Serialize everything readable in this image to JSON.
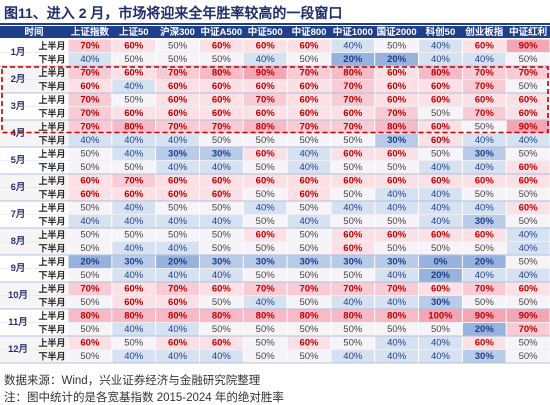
{
  "title": "图11、进入 2 月，市场将迎来全年胜率较高的一段窗口",
  "footer": {
    "source": "数据来源：Wind，兴业证券经济与金融研究院整理",
    "note": "注：图中统计的是各宽基指数 2015-2024 年的绝对胜率"
  },
  "colors": {
    "header_bg": "#1f3f8a",
    "header_text": "#ffffff",
    "label_text": "#1f2d6b",
    "band_light": "#f7f4f6",
    "high": "#c00000",
    "low": "#1f3f8a",
    "neutral": "#444444",
    "highlight_border": "#c00000"
  },
  "chart_data": {
    "type": "table",
    "title": "图11、进入 2 月，市场将迎来全年胜率较高的一段窗口",
    "column_headers": [
      "时间",
      "上证指数",
      "上证50",
      "沪深300",
      "中证A500",
      "中证500",
      "中证800",
      "中证1000",
      "国证2000",
      "科创50",
      "创业板指",
      "中证红利"
    ],
    "months": [
      "1月",
      "2月",
      "3月",
      "4月",
      "5月",
      "6月",
      "7月",
      "8月",
      "9月",
      "10月",
      "11月",
      "12月"
    ],
    "halves": [
      "上半月",
      "下半月"
    ],
    "highlighted_months": [
      "2月",
      "3月",
      "4月"
    ],
    "rows": [
      {
        "month": "1月",
        "half": "上半月",
        "values": [
          "70%",
          "60%",
          "50%",
          "60%",
          "60%",
          "60%",
          "40%",
          "50%",
          "40%",
          "60%",
          "90%"
        ]
      },
      {
        "month": "1月",
        "half": "下半月",
        "values": [
          "40%",
          "50%",
          "50%",
          "50%",
          "40%",
          "50%",
          "20%",
          "20%",
          "40%",
          "40%",
          "50%"
        ]
      },
      {
        "month": "2月",
        "half": "上半月",
        "values": [
          "70%",
          "60%",
          "70%",
          "80%",
          "90%",
          "70%",
          "80%",
          "60%",
          "80%",
          "70%",
          "70%"
        ]
      },
      {
        "month": "2月",
        "half": "下半月",
        "values": [
          "60%",
          "40%",
          "60%",
          "60%",
          "60%",
          "60%",
          "70%",
          "60%",
          "60%",
          "70%",
          "50%"
        ]
      },
      {
        "month": "3月",
        "half": "上半月",
        "values": [
          "70%",
          "50%",
          "60%",
          "60%",
          "70%",
          "60%",
          "70%",
          "60%",
          "60%",
          "60%",
          "60%"
        ]
      },
      {
        "month": "3月",
        "half": "下半月",
        "values": [
          "70%",
          "60%",
          "60%",
          "60%",
          "60%",
          "60%",
          "60%",
          "70%",
          "50%",
          "70%",
          "60%"
        ]
      },
      {
        "month": "4月",
        "half": "上半月",
        "values": [
          "70%",
          "80%",
          "70%",
          "70%",
          "80%",
          "70%",
          "70%",
          "80%",
          "60%",
          "50%",
          "90%"
        ]
      },
      {
        "month": "4月",
        "half": "下半月",
        "values": [
          "40%",
          "40%",
          "40%",
          "50%",
          "50%",
          "50%",
          "50%",
          "30%",
          "60%",
          "40%",
          "40%"
        ]
      },
      {
        "month": "5月",
        "half": "上半月",
        "values": [
          "50%",
          "40%",
          "30%",
          "30%",
          "60%",
          "40%",
          "60%",
          "60%",
          "50%",
          "30%",
          "50%"
        ]
      },
      {
        "month": "5月",
        "half": "下半月",
        "values": [
          "50%",
          "50%",
          "40%",
          "40%",
          "50%",
          "40%",
          "50%",
          "50%",
          "40%",
          "40%",
          "60%"
        ]
      },
      {
        "month": "6月",
        "half": "上半月",
        "values": [
          "60%",
          "70%",
          "60%",
          "60%",
          "60%",
          "60%",
          "60%",
          "60%",
          "60%",
          "60%",
          "60%"
        ]
      },
      {
        "month": "6月",
        "half": "下半月",
        "values": [
          "60%",
          "60%",
          "60%",
          "60%",
          "50%",
          "60%",
          "50%",
          "40%",
          "40%",
          "50%",
          "50%"
        ]
      },
      {
        "month": "7月",
        "half": "上半月",
        "values": [
          "50%",
          "40%",
          "50%",
          "50%",
          "40%",
          "50%",
          "40%",
          "40%",
          "40%",
          "40%",
          "60%"
        ]
      },
      {
        "month": "7月",
        "half": "下半月",
        "values": [
          "40%",
          "40%",
          "40%",
          "40%",
          "50%",
          "40%",
          "50%",
          "50%",
          "40%",
          "30%",
          "50%"
        ]
      },
      {
        "month": "8月",
        "half": "上半月",
        "values": [
          "50%",
          "50%",
          "50%",
          "50%",
          "60%",
          "50%",
          "60%",
          "60%",
          "60%",
          "60%",
          "40%"
        ]
      },
      {
        "month": "8月",
        "half": "下半月",
        "values": [
          "50%",
          "40%",
          "40%",
          "50%",
          "50%",
          "50%",
          "60%",
          "50%",
          "50%",
          "50%",
          "40%"
        ]
      },
      {
        "month": "9月",
        "half": "上半月",
        "values": [
          "20%",
          "30%",
          "20%",
          "30%",
          "30%",
          "30%",
          "30%",
          "30%",
          "0%",
          "20%",
          "50%"
        ]
      },
      {
        "month": "9月",
        "half": "下半月",
        "values": [
          "50%",
          "40%",
          "40%",
          "40%",
          "50%",
          "50%",
          "50%",
          "40%",
          "20%",
          "40%",
          "40%"
        ]
      },
      {
        "month": "10月",
        "half": "上半月",
        "values": [
          "70%",
          "60%",
          "70%",
          "60%",
          "70%",
          "70%",
          "70%",
          "70%",
          "60%",
          "70%",
          "60%"
        ]
      },
      {
        "month": "10月",
        "half": "下半月",
        "values": [
          "50%",
          "60%",
          "60%",
          "50%",
          "40%",
          "50%",
          "40%",
          "40%",
          "30%",
          "50%",
          "50%"
        ]
      },
      {
        "month": "11月",
        "half": "上半月",
        "values": [
          "80%",
          "80%",
          "80%",
          "80%",
          "80%",
          "80%",
          "80%",
          "80%",
          "100%",
          "90%",
          "90%"
        ]
      },
      {
        "month": "11月",
        "half": "下半月",
        "values": [
          "50%",
          "40%",
          "40%",
          "50%",
          "50%",
          "50%",
          "50%",
          "50%",
          "50%",
          "20%",
          "70%"
        ]
      },
      {
        "month": "12月",
        "half": "上半月",
        "values": [
          "60%",
          "50%",
          "60%",
          "60%",
          "50%",
          "60%",
          "50%",
          "40%",
          "40%",
          "60%",
          "50%"
        ]
      },
      {
        "month": "12月",
        "half": "下半月",
        "values": [
          "50%",
          "40%",
          "40%",
          "40%",
          "50%",
          "50%",
          "40%",
          "40%",
          "40%",
          "30%",
          "50%"
        ]
      }
    ]
  }
}
